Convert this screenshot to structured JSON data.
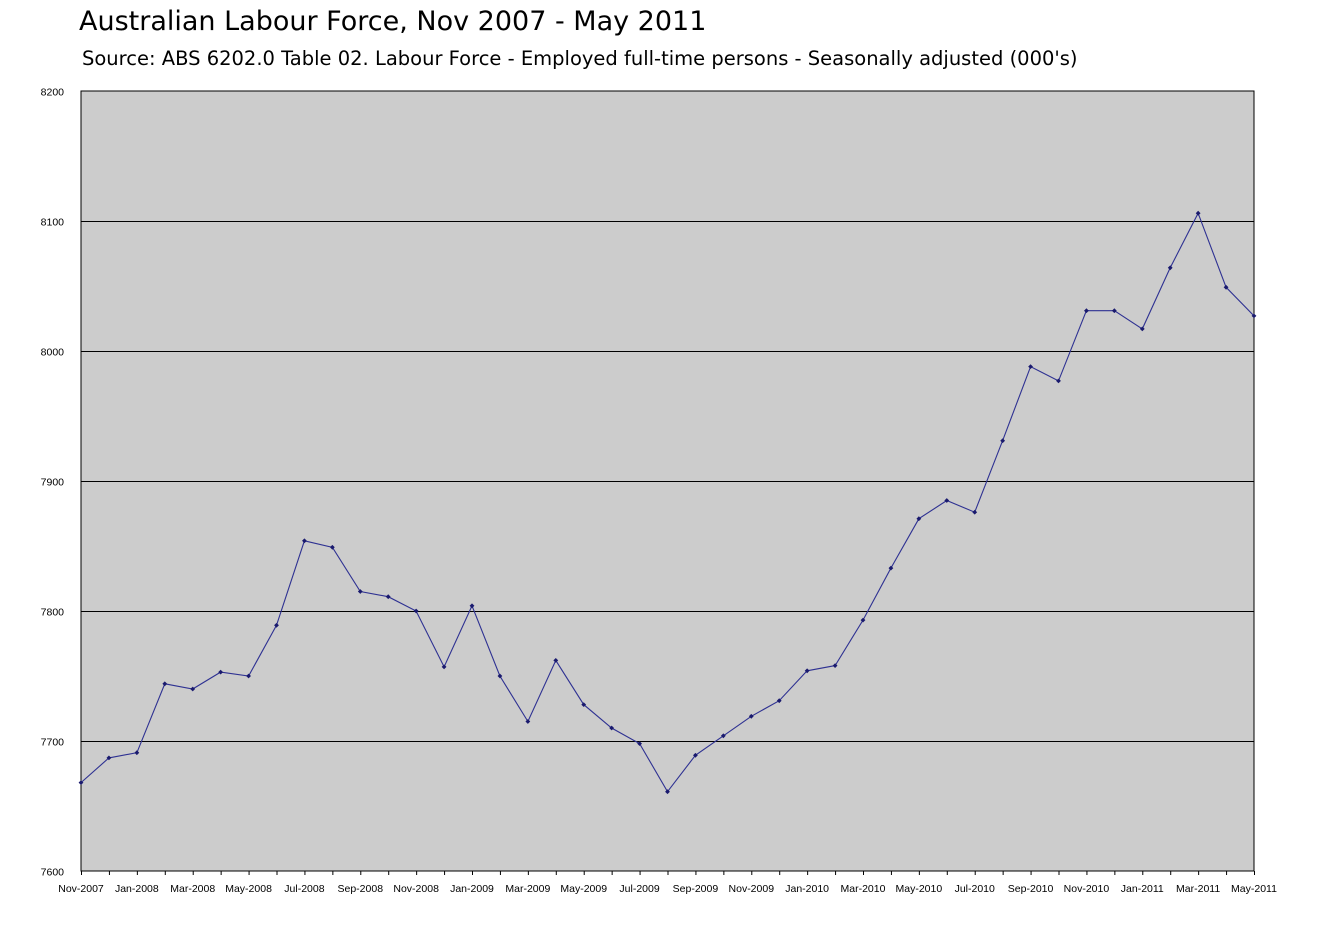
{
  "chart_data": {
    "type": "line",
    "title": "Australian Labour Force, Nov 2007 - May 2011",
    "subtitle": "Source: ABS 6202.0 Table 02. Labour Force - Employed full-time persons - Seasonally adjusted  (000's)",
    "ylim": [
      7600,
      8200
    ],
    "yticks": [
      "7600",
      "7700",
      "7800",
      "7900",
      "8000",
      "8100",
      "8200"
    ],
    "xtick_labels": [
      "Nov-2007",
      "Jan-2008",
      "Mar-2008",
      "May-2008",
      "Jul-2008",
      "Sep-2008",
      "Nov-2008",
      "Jan-2009",
      "Mar-2009",
      "May-2009",
      "Jul-2009",
      "Sep-2009",
      "Nov-2009",
      "Jan-2010",
      "Mar-2010",
      "May-2010",
      "Jul-2010",
      "Sep-2010",
      "Nov-2010",
      "Jan-2011",
      "Mar-2011",
      "May-2011"
    ],
    "grid": true,
    "legend": "none",
    "colors": {
      "plot_background": "#cccccc",
      "line": "#2e3192",
      "marker": "#1a1a6e",
      "grid": "#000000"
    },
    "x": [
      "Nov-2007",
      "Dec-2007",
      "Jan-2008",
      "Feb-2008",
      "Mar-2008",
      "Apr-2008",
      "May-2008",
      "Jun-2008",
      "Jul-2008",
      "Aug-2008",
      "Sep-2008",
      "Oct-2008",
      "Nov-2008",
      "Dec-2008",
      "Jan-2009",
      "Feb-2009",
      "Mar-2009",
      "Apr-2009",
      "May-2009",
      "Jun-2009",
      "Jul-2009",
      "Aug-2009",
      "Sep-2009",
      "Oct-2009",
      "Nov-2009",
      "Dec-2009",
      "Jan-2010",
      "Feb-2010",
      "Mar-2010",
      "Apr-2010",
      "May-2010",
      "Jun-2010",
      "Jul-2010",
      "Aug-2010",
      "Sep-2010",
      "Oct-2010",
      "Nov-2010",
      "Dec-2010",
      "Jan-2011",
      "Feb-2011",
      "Mar-2011",
      "Apr-2011",
      "May-2011"
    ],
    "series": [
      {
        "values": [
          7668,
          7687,
          7691,
          7744,
          7740,
          7753,
          7750,
          7789,
          7854,
          7849,
          7815,
          7811,
          7800,
          7757,
          7804,
          7750,
          7715,
          7762,
          7728,
          7710,
          7698,
          7661,
          7689,
          7704,
          7719,
          7731,
          7754,
          7758,
          7793,
          7833,
          7871,
          7885,
          7876,
          7931,
          7988,
          7977,
          8031,
          8031,
          8017,
          8064,
          8106,
          8049,
          8027
        ]
      }
    ]
  }
}
